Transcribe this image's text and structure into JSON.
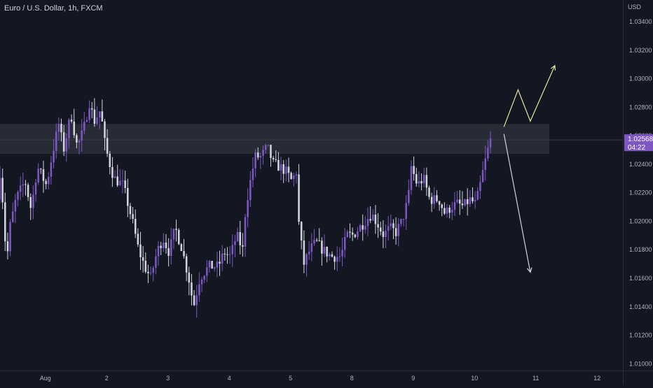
{
  "header": {
    "symbol_title": "Euro / U.S. Dollar, 1h, FXCM"
  },
  "axis": {
    "currency": "USD"
  },
  "colors": {
    "background": "#131722",
    "bull": "#7e57c2",
    "bear": "#d1d4dc",
    "zone": "#2a2e39",
    "line": "#3a3e4a",
    "price_badge": "#7e57c2",
    "bull_arrow": "#e6e6a0",
    "bear_arrow": "#d1d4dc",
    "axis_text": "#b2b5be"
  },
  "price_badge": {
    "price": "1.02568",
    "countdown": "04:22"
  },
  "chart_data": {
    "type": "candlestick",
    "title": "Euro / U.S. Dollar, 1h, FXCM",
    "ylabel": "USD",
    "ylim": [
      1.0095,
      1.0355
    ],
    "yticks": [
      "1.03400",
      "1.03200",
      "1.03000",
      "1.02800",
      "1.02600",
      "1.02400",
      "1.02200",
      "1.02000",
      "1.01800",
      "1.01600",
      "1.01400",
      "1.01200",
      "1.01000"
    ],
    "xticks": [
      {
        "label": "Aug",
        "x": 0.74
      },
      {
        "label": "2",
        "x": 1.74
      },
      {
        "label": "3",
        "x": 2.74
      },
      {
        "label": "4",
        "x": 3.74
      },
      {
        "label": "5",
        "x": 4.74
      },
      {
        "label": "8",
        "x": 5.74
      },
      {
        "label": "9",
        "x": 6.74
      },
      {
        "label": "10",
        "x": 7.74
      },
      {
        "label": "11",
        "x": 8.74
      },
      {
        "label": "12",
        "x": 9.74
      }
    ],
    "anchors": [
      [
        0.0,
        1.0215
      ],
      [
        0.05,
        1.0238
      ],
      [
        0.15,
        1.017
      ],
      [
        0.2,
        1.0195
      ],
      [
        0.3,
        1.0215
      ],
      [
        0.45,
        1.0228
      ],
      [
        0.55,
        1.0208
      ],
      [
        0.65,
        1.0238
      ],
      [
        0.8,
        1.0225
      ],
      [
        0.9,
        1.0248
      ],
      [
        1.0,
        1.0268
      ],
      [
        1.08,
        1.025
      ],
      [
        1.2,
        1.0275
      ],
      [
        1.3,
        1.0252
      ],
      [
        1.4,
        1.0263
      ],
      [
        1.5,
        1.0283
      ],
      [
        1.58,
        1.027
      ],
      [
        1.68,
        1.0278
      ],
      [
        1.75,
        1.0255
      ],
      [
        1.8,
        1.0245
      ],
      [
        1.9,
        1.023
      ],
      [
        2.05,
        1.0225
      ],
      [
        2.2,
        1.02
      ],
      [
        2.3,
        1.018
      ],
      [
        2.4,
        1.0168
      ],
      [
        2.5,
        1.016
      ],
      [
        2.6,
        1.0178
      ],
      [
        2.7,
        1.0188
      ],
      [
        2.8,
        1.0178
      ],
      [
        2.9,
        1.0195
      ],
      [
        3.0,
        1.0182
      ],
      [
        3.12,
        1.016
      ],
      [
        3.2,
        1.014
      ],
      [
        3.3,
        1.016
      ],
      [
        3.45,
        1.0168
      ],
      [
        3.6,
        1.0168
      ],
      [
        3.7,
        1.0178
      ],
      [
        3.8,
        1.0175
      ],
      [
        3.9,
        1.019
      ],
      [
        4.0,
        1.018
      ],
      [
        4.05,
        1.021
      ],
      [
        4.2,
        1.0245
      ],
      [
        4.3,
        1.0245
      ],
      [
        4.4,
        1.0252
      ],
      [
        4.5,
        1.024
      ],
      [
        4.6,
        1.0238
      ],
      [
        4.7,
        1.0235
      ],
      [
        4.8,
        1.0228
      ],
      [
        4.88,
        1.0235
      ],
      [
        4.92,
        1.0195
      ],
      [
        5.0,
        1.017
      ],
      [
        5.1,
        1.018
      ],
      [
        5.2,
        1.0185
      ],
      [
        5.3,
        1.018
      ],
      [
        5.45,
        1.0175
      ],
      [
        5.6,
        1.0175
      ],
      [
        5.7,
        1.019
      ],
      [
        5.8,
        1.019
      ],
      [
        5.9,
        1.0195
      ],
      [
        6.0,
        1.02
      ],
      [
        6.1,
        1.0205
      ],
      [
        6.2,
        1.0198
      ],
      [
        6.3,
        1.019
      ],
      [
        6.4,
        1.0195
      ],
      [
        6.5,
        1.0192
      ],
      [
        6.6,
        1.02
      ],
      [
        6.7,
        1.0215
      ],
      [
        6.75,
        1.0238
      ],
      [
        6.85,
        1.0225
      ],
      [
        6.95,
        1.023
      ],
      [
        7.05,
        1.0215
      ],
      [
        7.2,
        1.0215
      ],
      [
        7.3,
        1.0205
      ],
      [
        7.4,
        1.021
      ],
      [
        7.5,
        1.0212
      ],
      [
        7.6,
        1.021
      ],
      [
        7.7,
        1.0215
      ],
      [
        7.8,
        1.0212
      ],
      [
        7.85,
        1.022
      ],
      [
        7.92,
        1.0235
      ],
      [
        8.0,
        1.025
      ],
      [
        8.03,
        1.02568
      ]
    ],
    "x_last": 8.03,
    "xlim": [
      0.0,
      10.1
    ],
    "candles_per_day": 24,
    "resistance_zone": [
      1.0247,
      1.0268
    ],
    "current_price": 1.02568,
    "bull_projection": [
      [
        8.22,
        1.0266
      ],
      [
        8.45,
        1.0292
      ],
      [
        8.65,
        1.027
      ],
      [
        9.05,
        1.0309
      ]
    ],
    "bear_projection": [
      [
        8.22,
        1.0261
      ],
      [
        8.65,
        1.0164
      ]
    ]
  }
}
